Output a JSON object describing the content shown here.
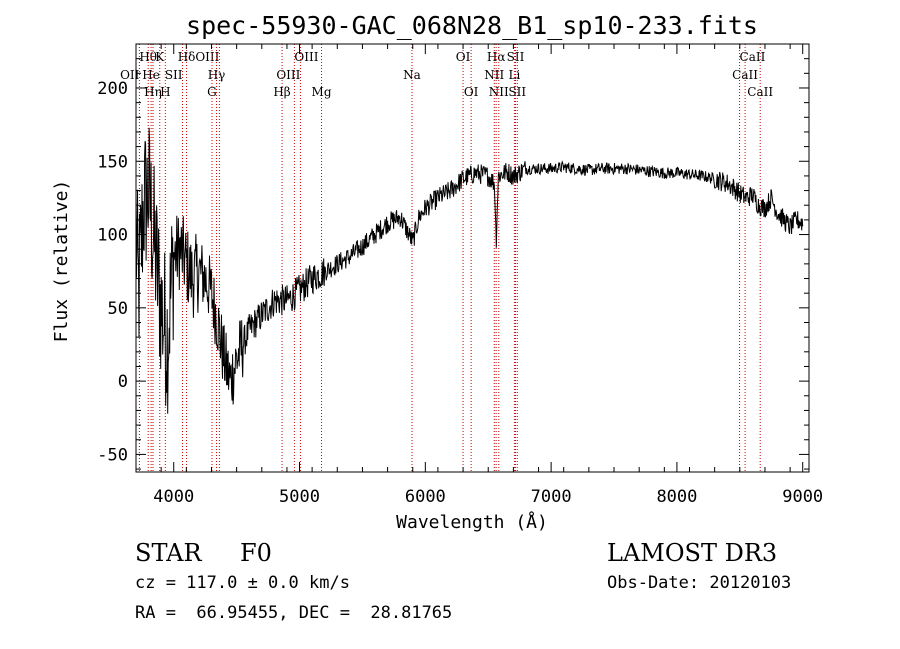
{
  "chart_data": {
    "type": "line",
    "title": "spec-55930-GAC_068N28_B1_sp10-233.fits",
    "xlabel": "Wavelength (Å)",
    "ylabel": "Flux (relative)",
    "xlim": [
      3700,
      9050
    ],
    "ylim": [
      -62,
      230
    ],
    "xticks": [
      4000,
      5000,
      6000,
      7000,
      8000,
      9000
    ],
    "yticks": [
      -50,
      0,
      50,
      100,
      150,
      200
    ],
    "grid": false,
    "line_color": "#000000",
    "marker_color": "#cc0000",
    "spectrum_anchors": {
      "x": [
        3700,
        3720,
        3760,
        3800,
        3850,
        3900,
        3950,
        4000,
        4050,
        4100,
        4150,
        4200,
        4250,
        4300,
        4350,
        4400,
        4450,
        4500,
        4600,
        4700,
        4800,
        4900,
        5000,
        5100,
        5200,
        5300,
        5400,
        5500,
        5600,
        5700,
        5800,
        5900,
        5950,
        6000,
        6100,
        6200,
        6300,
        6400,
        6500,
        6550,
        6563,
        6580,
        6650,
        6700,
        6800,
        6900,
        7000,
        7100,
        7200,
        7300,
        7400,
        7500,
        7600,
        7700,
        7800,
        7900,
        8000,
        8100,
        8200,
        8300,
        8400,
        8450,
        8500,
        8550,
        8600,
        8650,
        8700,
        8750,
        8800,
        8850,
        8900,
        8950,
        9000
      ],
      "y": [
        100,
        60,
        120,
        130,
        90,
        50,
        30,
        85,
        90,
        80,
        70,
        75,
        70,
        60,
        40,
        15,
        0,
        15,
        35,
        45,
        55,
        55,
        62,
        70,
        75,
        80,
        85,
        92,
        100,
        108,
        112,
        95,
        112,
        118,
        125,
        130,
        138,
        142,
        140,
        135,
        95,
        140,
        143,
        140,
        145,
        145,
        145,
        146,
        145,
        144,
        145,
        145,
        145,
        144,
        143,
        142,
        142,
        141,
        140,
        138,
        135,
        132,
        128,
        125,
        127,
        120,
        118,
        125,
        115,
        110,
        105,
        110,
        108
      ]
    },
    "line_markers": [
      {
        "label": "Hθ",
        "x": 3797,
        "row": 1,
        "align": "center"
      },
      {
        "label": "OII",
        "x": 3727,
        "row": 2,
        "align": "right"
      },
      {
        "label": "He",
        "x": 3820,
        "row": 2,
        "align": "center"
      },
      {
        "label": "Hη",
        "x": 3835,
        "row": 3,
        "align": "center"
      },
      {
        "label": "K",
        "x": 3889,
        "row": 1,
        "align": "center"
      },
      {
        "label": "SII",
        "x": 4070,
        "row": 2,
        "align": "right"
      },
      {
        "label": "H",
        "x": 3933,
        "row": 3,
        "align": "center"
      },
      {
        "label": "Hδ",
        "x": 4102,
        "row": 1,
        "align": "center"
      },
      {
        "label": "OIII",
        "x": 4363,
        "row": 1,
        "align": "right"
      },
      {
        "label": "Hγ",
        "x": 4340,
        "row": 2,
        "align": "center"
      },
      {
        "label": "G",
        "x": 4304,
        "row": 3,
        "align": "center"
      },
      {
        "label": "Hβ",
        "x": 4861,
        "row": 3,
        "align": "center"
      },
      {
        "label": "OIII",
        "x": 4959,
        "row": 1,
        "align": "left"
      },
      {
        "label": "OIII",
        "x": 5007,
        "row": 2,
        "align": "right"
      },
      {
        "label": "Mg",
        "x": 5175,
        "row": 3,
        "align": "center"
      },
      {
        "label": "Na",
        "x": 5894,
        "row": 2,
        "align": "center"
      },
      {
        "label": "OI",
        "x": 6300,
        "row": 1,
        "align": "center"
      },
      {
        "label": "OI",
        "x": 6364,
        "row": 3,
        "align": "center"
      },
      {
        "label": "Hα",
        "x": 6563,
        "row": 1,
        "align": "center"
      },
      {
        "label": "NII",
        "x": 6548,
        "row": 2,
        "align": "center"
      },
      {
        "label": "NII",
        "x": 6584,
        "row": 3,
        "align": "center"
      },
      {
        "label": "SII",
        "x": 6717,
        "row": 1,
        "align": "center"
      },
      {
        "label": "Li",
        "x": 6708,
        "row": 2,
        "align": "center"
      },
      {
        "label": "SII",
        "x": 6731,
        "row": 3,
        "align": "center"
      },
      {
        "label": "CaII",
        "x": 8498,
        "row": 1,
        "align": "left"
      },
      {
        "label": "CaII",
        "x": 8542,
        "row": 2,
        "align": "center"
      },
      {
        "label": "CaII",
        "x": 8662,
        "row": 3,
        "align": "center"
      }
    ]
  },
  "footer": {
    "object_class": "STAR",
    "subclass": "F0",
    "survey": "LAMOST DR3",
    "redshift": "cz = 117.0 ± 0.0 km/s",
    "obs_date": "Obs-Date: 20120103",
    "coords": "RA =  66.95455, DEC =  28.81765"
  }
}
